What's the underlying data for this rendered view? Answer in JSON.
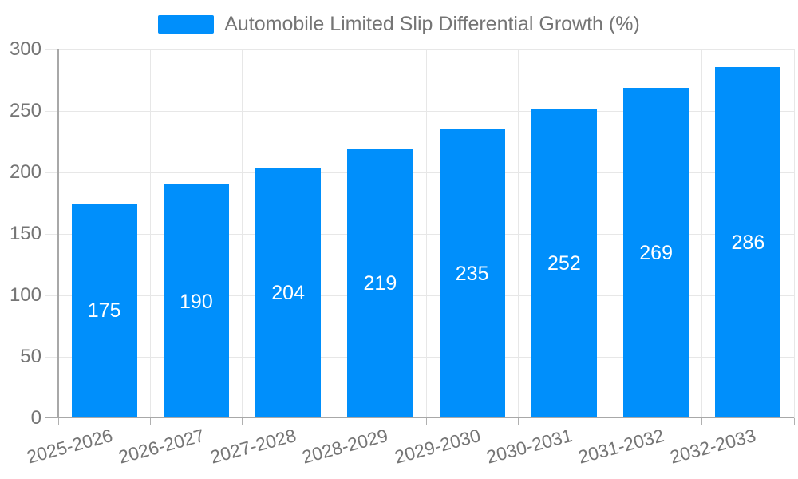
{
  "legend": {
    "label": "Automobile Limited Slip Differential Growth (%)"
  },
  "chart_data": {
    "type": "bar",
    "title": "Automobile Limited Slip Differential Growth (%)",
    "categories": [
      "2025-2026",
      "2026-2027",
      "2027-2028",
      "2028-2029",
      "2029-2030",
      "2030-2031",
      "2031-2032",
      "2032-2033"
    ],
    "series": [
      {
        "name": "Automobile Limited Slip Differential Growth (%)",
        "values": [
          175,
          190,
          204,
          219,
          235,
          252,
          269,
          286
        ]
      }
    ],
    "values": [
      175,
      190,
      204,
      219,
      235,
      252,
      269,
      286
    ],
    "bar_value_labels": [
      "175",
      "190",
      "204",
      "219",
      "235",
      "252",
      "269",
      "286"
    ],
    "xlabel": "",
    "ylabel": "",
    "ylim": [
      0,
      300
    ],
    "yticks": [
      0,
      50,
      100,
      150,
      200,
      250,
      300
    ],
    "grid": true,
    "legend_position": "top",
    "x_label_rotation_deg": -15,
    "colors": {
      "bar": "#008FFB",
      "bar_label_text": "#FFFFFF",
      "axis_text": "#757575",
      "gridline": "#E7E7E7",
      "axis_line": "#A8A8A8",
      "tick": "#B0B0B0",
      "background": "#FFFFFF"
    }
  }
}
